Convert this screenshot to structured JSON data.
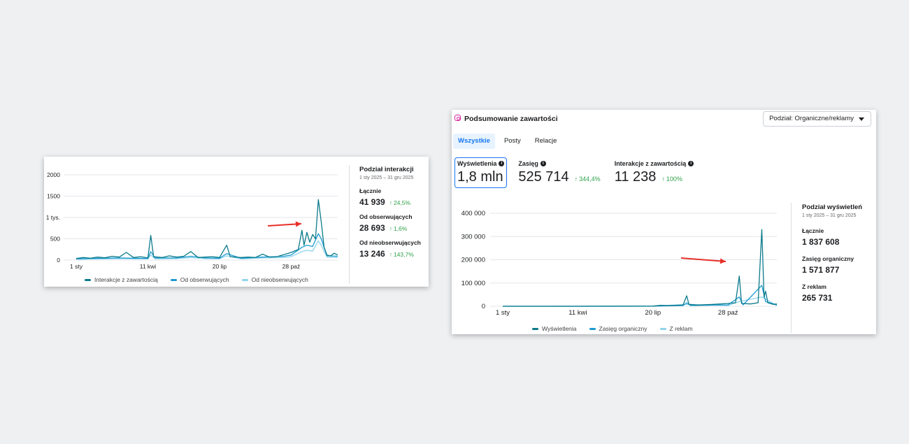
{
  "card1": {
    "chart_data": {
      "type": "line",
      "y_ticks": [
        "2000",
        "1500",
        "1 tys.",
        "500",
        "0"
      ],
      "ylim": [
        0,
        2000
      ],
      "x_ticks": [
        "1 sty",
        "11 kwi",
        "20 lip",
        "28 paź"
      ],
      "x_tick_positions": [
        0,
        100,
        200,
        300
      ],
      "x_range": [
        0,
        365
      ],
      "series": [
        {
          "name": "Interakcje z zawartością",
          "color": "#0b7a8a",
          "points": [
            [
              0,
              40
            ],
            [
              10,
              60
            ],
            [
              20,
              45
            ],
            [
              30,
              70
            ],
            [
              40,
              55
            ],
            [
              50,
              90
            ],
            [
              60,
              70
            ],
            [
              70,
              180
            ],
            [
              80,
              60
            ],
            [
              90,
              80
            ],
            [
              100,
              50
            ],
            [
              104,
              580
            ],
            [
              108,
              80
            ],
            [
              120,
              60
            ],
            [
              130,
              100
            ],
            [
              140,
              70
            ],
            [
              150,
              90
            ],
            [
              160,
              200
            ],
            [
              170,
              60
            ],
            [
              180,
              70
            ],
            [
              190,
              80
            ],
            [
              200,
              60
            ],
            [
              210,
              350
            ],
            [
              215,
              80
            ],
            [
              230,
              60
            ],
            [
              240,
              70
            ],
            [
              250,
              60
            ],
            [
              260,
              140
            ],
            [
              270,
              70
            ],
            [
              280,
              80
            ],
            [
              290,
              130
            ],
            [
              300,
              180
            ],
            [
              310,
              250
            ],
            [
              315,
              700
            ],
            [
              318,
              350
            ],
            [
              322,
              650
            ],
            [
              326,
              420
            ],
            [
              330,
              600
            ],
            [
              334,
              500
            ],
            [
              338,
              1420
            ],
            [
              342,
              900
            ],
            [
              346,
              300
            ],
            [
              350,
              120
            ],
            [
              355,
              100
            ],
            [
              360,
              160
            ],
            [
              365,
              120
            ]
          ]
        },
        {
          "name": "Od obserwujących",
          "color": "#1d9bd1",
          "points": [
            [
              0,
              30
            ],
            [
              20,
              40
            ],
            [
              40,
              45
            ],
            [
              60,
              50
            ],
            [
              80,
              45
            ],
            [
              100,
              40
            ],
            [
              104,
              200
            ],
            [
              110,
              50
            ],
            [
              140,
              50
            ],
            [
              160,
              90
            ],
            [
              180,
              50
            ],
            [
              200,
              45
            ],
            [
              210,
              150
            ],
            [
              230,
              45
            ],
            [
              260,
              70
            ],
            [
              290,
              90
            ],
            [
              300,
              120
            ],
            [
              315,
              300
            ],
            [
              322,
              350
            ],
            [
              330,
              320
            ],
            [
              338,
              620
            ],
            [
              342,
              500
            ],
            [
              350,
              100
            ],
            [
              365,
              90
            ]
          ]
        },
        {
          "name": "Od nieobserwujących",
          "color": "#8fd4ec",
          "points": [
            [
              0,
              20
            ],
            [
              20,
              25
            ],
            [
              40,
              30
            ],
            [
              60,
              35
            ],
            [
              80,
              30
            ],
            [
              100,
              30
            ],
            [
              104,
              120
            ],
            [
              110,
              30
            ],
            [
              140,
              35
            ],
            [
              160,
              60
            ],
            [
              180,
              35
            ],
            [
              200,
              30
            ],
            [
              210,
              100
            ],
            [
              230,
              30
            ],
            [
              260,
              50
            ],
            [
              290,
              60
            ],
            [
              300,
              80
            ],
            [
              315,
              200
            ],
            [
              322,
              230
            ],
            [
              330,
              210
            ],
            [
              338,
              450
            ],
            [
              342,
              350
            ],
            [
              350,
              70
            ],
            [
              365,
              60
            ]
          ]
        }
      ]
    },
    "legend": [
      "Interakcje z zawartością",
      "Od obserwujących",
      "Od nieobserwujących"
    ],
    "side": {
      "title": "Podział interakcji",
      "dates": "1 sty 2025 – 31 gru 2025",
      "metrics": [
        {
          "label": "Łącznie",
          "value": "41 939",
          "change": "24,5%"
        },
        {
          "label": "Od obserwujących",
          "value": "28 693",
          "change": "1,6%"
        },
        {
          "label": "Od nieobserwujących",
          "value": "13 246",
          "change": "143,7%"
        }
      ]
    },
    "annotation_color": "#e8312a"
  },
  "card2": {
    "title": "Podsumowanie zawartości",
    "dropdown": "Podział: Organiczne/reklamy",
    "tabs": [
      "Wszystkie",
      "Posty",
      "Relacje"
    ],
    "kpis": [
      {
        "label": "Wyświetlenia",
        "value": "1,8 mln",
        "change": ""
      },
      {
        "label": "Zasięg",
        "value": "525 714",
        "change": "344,4%"
      },
      {
        "label": "Interakcje z zawartością",
        "value": "11 238",
        "change": "100%"
      }
    ],
    "chart_data": {
      "type": "line",
      "y_ticks": [
        "400 000",
        "300 000",
        "200 000",
        "100 000",
        "0"
      ],
      "ylim": [
        0,
        400000
      ],
      "x_ticks": [
        "1 sty",
        "11 kwi",
        "20 lip",
        "28 paź"
      ],
      "x_tick_positions": [
        0,
        100,
        200,
        300
      ],
      "x_range": [
        0,
        365
      ],
      "series": [
        {
          "name": "Wyświetlenia",
          "color": "#0b7a8a",
          "points": [
            [
              0,
              0
            ],
            [
              100,
              0
            ],
            [
              200,
              500
            ],
            [
              210,
              4000
            ],
            [
              220,
              3000
            ],
            [
              240,
              5000
            ],
            [
              245,
              45000
            ],
            [
              248,
              8000
            ],
            [
              260,
              5000
            ],
            [
              280,
              8000
            ],
            [
              290,
              10000
            ],
            [
              300,
              12000
            ],
            [
              310,
              15000
            ],
            [
              315,
              130000
            ],
            [
              318,
              12000
            ],
            [
              330,
              10000
            ],
            [
              340,
              15000
            ],
            [
              345,
              330000
            ],
            [
              348,
              40000
            ],
            [
              350,
              65000
            ],
            [
              353,
              15000
            ],
            [
              360,
              8000
            ],
            [
              365,
              10000
            ]
          ]
        },
        {
          "name": "Zasięg organiczny",
          "color": "#1d9bd1",
          "points": [
            [
              0,
              0
            ],
            [
              100,
              0
            ],
            [
              200,
              300
            ],
            [
              240,
              3000
            ],
            [
              245,
              15000
            ],
            [
              250,
              3000
            ],
            [
              300,
              6000
            ],
            [
              315,
              40000
            ],
            [
              320,
              6000
            ],
            [
              345,
              90000
            ],
            [
              350,
              20000
            ],
            [
              365,
              5000
            ]
          ]
        },
        {
          "name": "Z reklam",
          "color": "#8fd4ec",
          "points": [
            [
              0,
              0
            ],
            [
              200,
              200
            ],
            [
              245,
              8000
            ],
            [
              300,
              3000
            ],
            [
              315,
              20000
            ],
            [
              345,
              40000
            ],
            [
              365,
              3000
            ]
          ]
        }
      ]
    },
    "legend": [
      "Wyświetlenia",
      "Zasięg organiczny",
      "Z reklam"
    ],
    "side": {
      "title": "Podział wyświetleń",
      "dates": "1 sty 2025 – 31 gru 2025",
      "metrics": [
        {
          "label": "Łącznie",
          "value": "1 837 608",
          "change": ""
        },
        {
          "label": "Zasięg organiczny",
          "value": "1 571 877",
          "change": ""
        },
        {
          "label": "Z reklam",
          "value": "265 731",
          "change": ""
        }
      ]
    },
    "annotation_color": "#e8312a"
  }
}
